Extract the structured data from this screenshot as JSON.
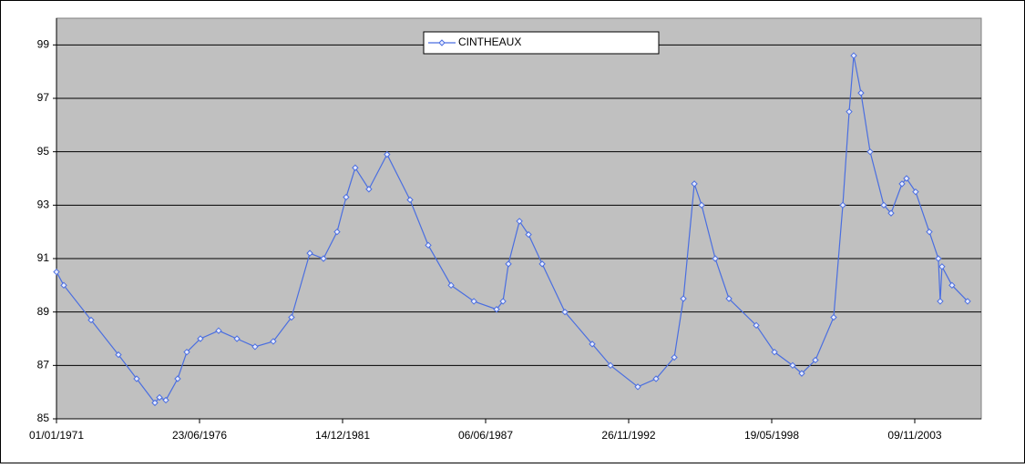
{
  "chart_data": {
    "type": "line",
    "x": [
      "01/01/1971",
      "13/04/1971",
      "29/04/1972",
      "16/05/1973",
      "26/01/1974",
      "08/10/1974",
      "11/12/1974",
      "10/03/1975",
      "22/08/1975",
      "28/12/1975",
      "05/07/1976",
      "17/03/1977",
      "28/11/1977",
      "08/08/1978",
      "20/04/1979",
      "31/12/1979",
      "12/09/1980",
      "22/03/1981",
      "28/09/1981",
      "02/02/1982",
      "09/06/1982",
      "17/12/1982",
      "28/08/1983",
      "14/07/1984",
      "26/03/1985",
      "08/02/1986",
      "24/12/1986",
      "06/11/1987",
      "04/02/1988",
      "20/04/1988",
      "21/09/1988",
      "26/01/1989",
      "05/08/1989",
      "19/06/1990",
      "06/07/1991",
      "17/03/1992",
      "03/04/1993",
      "14/12/1993",
      "26/08/1994",
      "31/12/1994",
      "02/06/1995",
      "12/09/1995",
      "21/03/1996",
      "28/09/1996",
      "15/10/1997",
      "27/06/1998",
      "08/03/1999",
      "13/07/1999",
      "20/01/2000",
      "01/10/2000",
      "06/02/2001",
      "06/05/2001",
      "09/07/2001",
      "18/10/2001",
      "23/02/2002",
      "02/09/2002",
      "13/12/2002",
      "15/05/2003",
      "17/07/2003",
      "21/11/2003",
      "31/05/2004",
      "04/10/2004",
      "30/10/2004",
      "24/11/2004",
      "13/04/2005",
      "17/11/2005"
    ],
    "series": [
      {
        "name": "CINTHEAUX",
        "color": "#4a6ee0",
        "values": [
          90.5,
          90.0,
          88.7,
          87.4,
          86.5,
          85.6,
          85.8,
          85.7,
          86.5,
          87.5,
          88.0,
          88.3,
          88.0,
          87.7,
          87.9,
          88.8,
          91.2,
          91.0,
          92.0,
          93.3,
          94.4,
          93.6,
          94.9,
          93.2,
          91.5,
          90.0,
          89.4,
          89.1,
          89.4,
          90.8,
          92.4,
          91.9,
          90.8,
          89.0,
          87.8,
          87.0,
          86.2,
          86.5,
          87.3,
          89.5,
          93.8,
          93.0,
          91.0,
          89.5,
          88.5,
          87.5,
          87.0,
          86.7,
          87.2,
          88.8,
          93.0,
          96.5,
          98.6,
          97.2,
          95.0,
          93.0,
          92.7,
          93.8,
          94.0,
          93.5,
          92.0,
          91.0,
          89.4,
          90.7,
          90.0,
          89.4
        ]
      }
    ],
    "xlim": [
      "01/01/1971",
      "27/05/2006"
    ],
    "xticks": [
      "01/01/1971",
      "23/06/1976",
      "14/12/1981",
      "06/06/1987",
      "26/11/1992",
      "19/05/1998",
      "09/11/2003"
    ],
    "ylim": [
      85,
      100
    ],
    "yticks": [
      85,
      87,
      89,
      91,
      93,
      95,
      97,
      99
    ],
    "grid": true,
    "legend": "top"
  }
}
